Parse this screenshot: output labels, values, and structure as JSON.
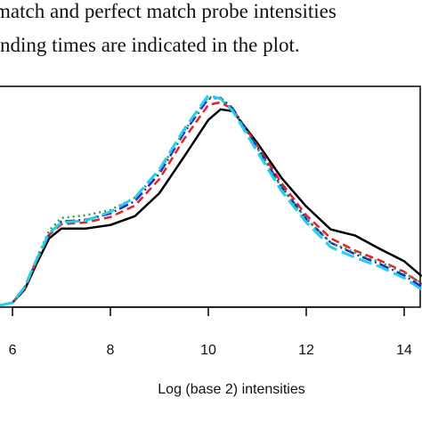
{
  "chart_data": {
    "type": "line",
    "caption": [
      "match and perfect match probe intensities",
      "nding times are indicated in the plot."
    ],
    "x_label": "Log (base 2) intensities",
    "x": [
      5.75,
      6,
      6.25,
      6.5,
      6.75,
      7,
      7.5,
      8,
      8.5,
      9,
      9.5,
      10,
      10.25,
      10.5,
      11,
      11.5,
      12,
      12.5,
      13,
      13.5,
      14,
      14.36
    ],
    "series": [
      {
        "color": "#000000",
        "values": [
          0.002,
          0.005,
          0.02,
          0.05,
          0.078,
          0.089,
          0.089,
          0.093,
          0.103,
          0.129,
          0.17,
          0.212,
          0.224,
          0.222,
          0.186,
          0.146,
          0.114,
          0.088,
          0.081,
          0.066,
          0.052,
          0.035
        ]
      },
      {
        "color": "#e02424",
        "values": [
          0.002,
          0.005,
          0.021,
          0.053,
          0.082,
          0.094,
          0.096,
          0.102,
          0.115,
          0.145,
          0.19,
          0.229,
          0.232,
          0.224,
          0.183,
          0.14,
          0.104,
          0.078,
          0.064,
          0.053,
          0.04,
          0.026
        ]
      },
      {
        "color": "#2626c8",
        "values": [
          0.002,
          0.005,
          0.022,
          0.054,
          0.083,
          0.097,
          0.099,
          0.106,
          0.12,
          0.151,
          0.197,
          0.236,
          0.237,
          0.225,
          0.181,
          0.136,
          0.1,
          0.073,
          0.06,
          0.049,
          0.036,
          0.023
        ]
      },
      {
        "color": "#3a9e3a",
        "values": [
          0.002,
          0.005,
          0.023,
          0.056,
          0.087,
          0.101,
          0.104,
          0.11,
          0.124,
          0.154,
          0.199,
          0.238,
          0.236,
          0.224,
          0.18,
          0.135,
          0.1,
          0.073,
          0.062,
          0.051,
          0.039,
          0.027
        ]
      },
      {
        "color": "#22d0ea",
        "values": [
          0.002,
          0.005,
          0.023,
          0.055,
          0.084,
          0.096,
          0.098,
          0.108,
          0.124,
          0.156,
          0.201,
          0.24,
          0.236,
          0.222,
          0.176,
          0.131,
          0.096,
          0.068,
          0.056,
          0.046,
          0.033,
          0.02
        ]
      }
    ],
    "xlim": [
      5.745,
      14.364
    ],
    "xticks": [
      6,
      8,
      10,
      12,
      14
    ],
    "ylim": [
      0,
      0.25
    ]
  }
}
